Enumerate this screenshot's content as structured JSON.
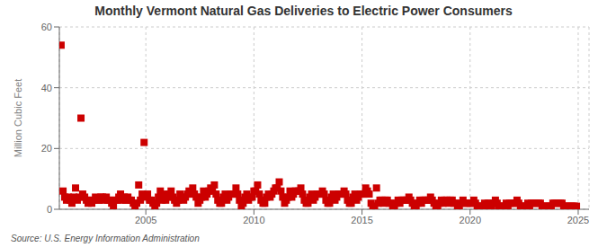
{
  "chart_data": {
    "type": "scatter",
    "title": "Monthly Vermont Natural Gas Deliveries to Electric Power Consumers",
    "y_label": "Million Cubic Feet",
    "annotations": [
      "Source: U.S. Energy Information Administration"
    ],
    "color": "#CC0000",
    "marker": "square",
    "grid": true,
    "xlim": [
      2001.0,
      2025.5
    ],
    "xticks": [
      2005,
      2010,
      2015,
      2020,
      2025
    ],
    "ylim": [
      0,
      60
    ],
    "yticks": [
      0,
      20,
      40,
      60
    ],
    "x": [
      2001.08,
      2001.17,
      2001.25,
      2001.33,
      2001.42,
      2001.5,
      2001.58,
      2001.67,
      2001.75,
      2001.83,
      2001.92,
      2002.0,
      2002.08,
      2002.17,
      2002.25,
      2002.33,
      2002.42,
      2002.5,
      2002.58,
      2002.67,
      2002.75,
      2002.83,
      2002.92,
      2003.0,
      2003.08,
      2003.17,
      2003.25,
      2003.33,
      2003.42,
      2003.5,
      2003.58,
      2003.67,
      2003.75,
      2003.83,
      2003.92,
      2004.0,
      2004.08,
      2004.17,
      2004.25,
      2004.33,
      2004.42,
      2004.5,
      2004.58,
      2004.67,
      2004.75,
      2004.83,
      2004.92,
      2005.0,
      2005.08,
      2005.17,
      2005.25,
      2005.33,
      2005.42,
      2005.5,
      2005.58,
      2005.67,
      2005.75,
      2005.83,
      2005.92,
      2006.0,
      2006.08,
      2006.17,
      2006.25,
      2006.33,
      2006.42,
      2006.5,
      2006.58,
      2006.67,
      2006.75,
      2006.83,
      2006.92,
      2007.0,
      2007.08,
      2007.17,
      2007.25,
      2007.33,
      2007.42,
      2007.5,
      2007.58,
      2007.67,
      2007.75,
      2007.83,
      2007.92,
      2008.0,
      2008.08,
      2008.17,
      2008.25,
      2008.33,
      2008.42,
      2008.5,
      2008.58,
      2008.67,
      2008.75,
      2008.83,
      2008.92,
      2009.0,
      2009.08,
      2009.17,
      2009.25,
      2009.33,
      2009.42,
      2009.5,
      2009.58,
      2009.67,
      2009.75,
      2009.83,
      2009.92,
      2010.0,
      2010.08,
      2010.17,
      2010.25,
      2010.33,
      2010.42,
      2010.5,
      2010.58,
      2010.67,
      2010.75,
      2010.83,
      2010.92,
      2011.0,
      2011.08,
      2011.17,
      2011.25,
      2011.33,
      2011.42,
      2011.5,
      2011.58,
      2011.67,
      2011.75,
      2011.83,
      2011.92,
      2012.0,
      2012.08,
      2012.17,
      2012.25,
      2012.33,
      2012.42,
      2012.5,
      2012.58,
      2012.67,
      2012.75,
      2012.83,
      2012.92,
      2013.0,
      2013.08,
      2013.17,
      2013.25,
      2013.33,
      2013.42,
      2013.5,
      2013.58,
      2013.67,
      2013.75,
      2013.83,
      2013.92,
      2014.0,
      2014.08,
      2014.17,
      2014.25,
      2014.33,
      2014.42,
      2014.5,
      2014.58,
      2014.67,
      2014.75,
      2014.83,
      2014.92,
      2015.0,
      2015.08,
      2015.17,
      2015.25,
      2015.33,
      2015.42,
      2015.5,
      2015.58,
      2015.67,
      2015.75,
      2015.83,
      2015.92,
      2016.0,
      2016.08,
      2016.17,
      2016.25,
      2016.33,
      2016.42,
      2016.5,
      2016.58,
      2016.67,
      2016.75,
      2016.83,
      2016.92,
      2017.0,
      2017.08,
      2017.17,
      2017.25,
      2017.33,
      2017.42,
      2017.5,
      2017.58,
      2017.67,
      2017.75,
      2017.83,
      2017.92,
      2018.0,
      2018.08,
      2018.17,
      2018.25,
      2018.33,
      2018.42,
      2018.5,
      2018.58,
      2018.67,
      2018.75,
      2018.83,
      2018.92,
      2019.0,
      2019.08,
      2019.17,
      2019.25,
      2019.33,
      2019.42,
      2019.5,
      2019.58,
      2019.67,
      2019.75,
      2019.83,
      2019.92,
      2020.0,
      2020.08,
      2020.17,
      2020.25,
      2020.33,
      2020.42,
      2020.5,
      2020.58,
      2020.67,
      2020.75,
      2020.83,
      2020.92,
      2021.0,
      2021.08,
      2021.17,
      2021.25,
      2021.33,
      2021.42,
      2021.5,
      2021.58,
      2021.67,
      2021.75,
      2021.83,
      2021.92,
      2022.0,
      2022.08,
      2022.17,
      2022.25,
      2022.33,
      2022.42,
      2022.5,
      2022.58,
      2022.67,
      2022.75,
      2022.83,
      2022.92,
      2023.0,
      2023.08,
      2023.17,
      2023.25,
      2023.33,
      2023.42,
      2023.5,
      2023.58,
      2023.67,
      2023.75,
      2023.83,
      2023.92,
      2024.0,
      2024.08,
      2024.17,
      2024.25,
      2024.33,
      2024.42,
      2024.5,
      2024.58,
      2024.67,
      2024.75,
      2024.83,
      2024.92
    ],
    "values": [
      54,
      6,
      4,
      3,
      4,
      3,
      2,
      4,
      7,
      3,
      4,
      30,
      5,
      4,
      3,
      2,
      3,
      2,
      3,
      4,
      3,
      3,
      4,
      4,
      3,
      4,
      3,
      3,
      2,
      1,
      3,
      3,
      4,
      5,
      3,
      4,
      3,
      4,
      3,
      3,
      2,
      1,
      2,
      8,
      3,
      5,
      22,
      4,
      5,
      3,
      3,
      2,
      1,
      2,
      4,
      6,
      3,
      5,
      3,
      4,
      5,
      6,
      4,
      3,
      2,
      3,
      5,
      4,
      3,
      4,
      5,
      6,
      5,
      7,
      5,
      4,
      2,
      3,
      4,
      6,
      4,
      5,
      6,
      7,
      6,
      8,
      5,
      3,
      2,
      2,
      4,
      5,
      3,
      4,
      5,
      5,
      5,
      7,
      5,
      3,
      1,
      2,
      4,
      5,
      3,
      4,
      4,
      6,
      6,
      8,
      5,
      3,
      2,
      2,
      4,
      5,
      4,
      5,
      6,
      7,
      7,
      9,
      6,
      4,
      2,
      3,
      4,
      6,
      4,
      5,
      6,
      6,
      6,
      7,
      5,
      3,
      2,
      2,
      4,
      5,
      3,
      4,
      5,
      5,
      5,
      6,
      5,
      3,
      2,
      2,
      4,
      5,
      3,
      4,
      5,
      5,
      5,
      6,
      5,
      3,
      2,
      2,
      4,
      5,
      3,
      4,
      5,
      5,
      5,
      7,
      6,
      5,
      2,
      1,
      1,
      7,
      2,
      3,
      3,
      2,
      3,
      3,
      2,
      2,
      1,
      1,
      2,
      3,
      2,
      3,
      3,
      3,
      3,
      4,
      3,
      2,
      1,
      1,
      2,
      3,
      2,
      3,
      3,
      3,
      3,
      4,
      3,
      2,
      1,
      1,
      2,
      3,
      2,
      3,
      3,
      2,
      3,
      3,
      2,
      2,
      1,
      1,
      2,
      3,
      2,
      2,
      2,
      2,
      2,
      3,
      2,
      1,
      1,
      1,
      1,
      2,
      1,
      2,
      2,
      1,
      2,
      3,
      2,
      1,
      1,
      1,
      1,
      2,
      1,
      2,
      2,
      2,
      2,
      3,
      2,
      1,
      1,
      1,
      1,
      2,
      1,
      2,
      2,
      2,
      2,
      2,
      2,
      1,
      1,
      1,
      1,
      1,
      1,
      2,
      2,
      2,
      2,
      2,
      2,
      1,
      1,
      1,
      1,
      1,
      1,
      1,
      1
    ]
  }
}
